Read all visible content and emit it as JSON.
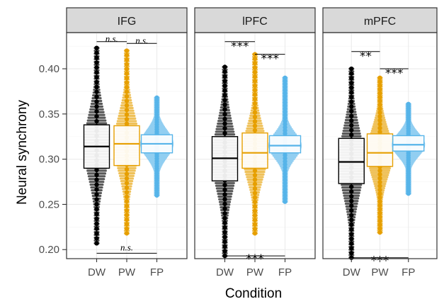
{
  "chart_data": {
    "type": "boxplot",
    "xlabel": "Condition",
    "ylabel": "Neural synchrony",
    "ylim": [
      0.19,
      0.44
    ],
    "yticks": [
      0.2,
      0.25,
      0.3,
      0.35,
      0.4
    ],
    "ytick_labels": [
      "0.20",
      "0.25",
      "0.30",
      "0.35",
      "0.40"
    ],
    "categories": [
      "DW",
      "PW",
      "FP"
    ],
    "colors": {
      "DW": "#000000",
      "PW": "#e69f00",
      "FP": "#56b4e9"
    },
    "panels": [
      {
        "title": "IFG",
        "groups": [
          {
            "name": "DW",
            "min": 0.207,
            "q1": 0.29,
            "median": 0.314,
            "q3": 0.338,
            "max": 0.423
          },
          {
            "name": "PW",
            "min": 0.218,
            "q1": 0.293,
            "median": 0.317,
            "q3": 0.337,
            "max": 0.42
          },
          {
            "name": "FP",
            "min": 0.26,
            "q1": 0.307,
            "median": 0.317,
            "q3": 0.327,
            "max": 0.368
          }
        ],
        "comparisons": [
          {
            "pair": [
              "DW",
              "PW"
            ],
            "y": 0.43,
            "label": "n.s."
          },
          {
            "pair": [
              "PW",
              "FP"
            ],
            "y": 0.428,
            "label": "n.s."
          },
          {
            "pair": [
              "DW",
              "FP"
            ],
            "y": 0.196,
            "label": "n.s."
          }
        ]
      },
      {
        "title": "lPFC",
        "groups": [
          {
            "name": "DW",
            "min": 0.193,
            "q1": 0.276,
            "median": 0.301,
            "q3": 0.325,
            "max": 0.402
          },
          {
            "name": "PW",
            "min": 0.218,
            "q1": 0.29,
            "median": 0.307,
            "q3": 0.329,
            "max": 0.416
          },
          {
            "name": "FP",
            "min": 0.253,
            "q1": 0.307,
            "median": 0.315,
            "q3": 0.326,
            "max": 0.39
          }
        ],
        "comparisons": [
          {
            "pair": [
              "DW",
              "PW"
            ],
            "y": 0.43,
            "label": "***"
          },
          {
            "pair": [
              "PW",
              "FP"
            ],
            "y": 0.416,
            "label": "***"
          },
          {
            "pair": [
              "DW",
              "FP"
            ],
            "y": 0.193,
            "label": "***"
          }
        ]
      },
      {
        "title": "mPFC",
        "groups": [
          {
            "name": "DW",
            "min": 0.191,
            "q1": 0.273,
            "median": 0.297,
            "q3": 0.323,
            "max": 0.4
          },
          {
            "name": "PW",
            "min": 0.219,
            "q1": 0.292,
            "median": 0.307,
            "q3": 0.328,
            "max": 0.39
          },
          {
            "name": "FP",
            "min": 0.262,
            "q1": 0.309,
            "median": 0.316,
            "q3": 0.326,
            "max": 0.361
          }
        ],
        "comparisons": [
          {
            "pair": [
              "DW",
              "PW"
            ],
            "y": 0.419,
            "label": "**"
          },
          {
            "pair": [
              "PW",
              "FP"
            ],
            "y": 0.4,
            "label": "***"
          },
          {
            "pair": [
              "DW",
              "FP"
            ],
            "y": 0.191,
            "label": "***"
          }
        ]
      }
    ]
  }
}
